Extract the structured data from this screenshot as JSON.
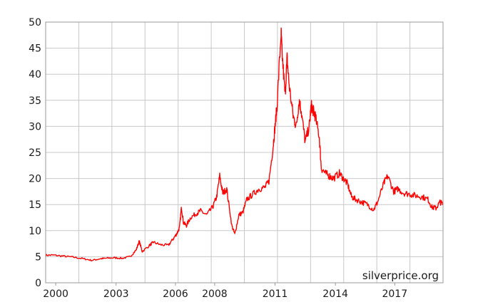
{
  "chart_data": {
    "type": "line",
    "title": "",
    "xlabel": "",
    "ylabel": "",
    "xlim": [
      1999.6,
      2019.35
    ],
    "ylim": [
      0,
      50
    ],
    "grid": true,
    "legend": "none",
    "watermark": "silverprice.org",
    "y_ticks": [
      "0",
      "5",
      "10",
      "15",
      "20",
      "25",
      "30",
      "35",
      "40",
      "45",
      "50"
    ],
    "x_ticks": [
      {
        "label": "2000",
        "value": 2000.1
      },
      {
        "label": "2003",
        "value": 2003.1
      },
      {
        "label": "2006",
        "value": 2006.05
      },
      {
        "label": "2008",
        "value": 2008.0
      },
      {
        "label": "2011",
        "value": 2011.0
      },
      {
        "label": "2014",
        "value": 2014.0
      },
      {
        "label": "2017",
        "value": 2016.95
      }
    ],
    "series": [
      {
        "color": "#ff0000",
        "x": [
          1999.6,
          2000.0,
          2000.5,
          2001.0,
          2001.5,
          2001.9,
          2002.3,
          2002.6,
          2003.0,
          2003.4,
          2003.8,
          2004.1,
          2004.25,
          2004.4,
          2004.8,
          2004.95,
          2005.3,
          2005.7,
          2005.95,
          2006.1,
          2006.25,
          2006.35,
          2006.45,
          2006.6,
          2006.8,
          2007.1,
          2007.3,
          2007.6,
          2007.9,
          2008.1,
          2008.25,
          2008.4,
          2008.6,
          2008.85,
          2009.0,
          2009.2,
          2009.4,
          2009.6,
          2009.9,
          2010.2,
          2010.5,
          2010.7,
          2010.9,
          2011.0,
          2011.1,
          2011.3,
          2011.35,
          2011.5,
          2011.6,
          2011.7,
          2011.9,
          2012.05,
          2012.2,
          2012.3,
          2012.5,
          2012.7,
          2012.8,
          2012.9,
          2013.0,
          2013.2,
          2013.3,
          2013.5,
          2013.7,
          2013.9,
          2014.2,
          2014.4,
          2014.6,
          2014.8,
          2015.0,
          2015.3,
          2015.6,
          2015.9,
          2016.1,
          2016.4,
          2016.6,
          2016.9,
          2017.1,
          2017.4,
          2017.7,
          2018.0,
          2018.3,
          2018.6,
          2018.8,
          2019.0,
          2019.2,
          2019.35
        ],
        "values": [
          5.3,
          5.3,
          5.1,
          4.9,
          4.6,
          4.3,
          4.6,
          4.7,
          4.8,
          4.7,
          5.0,
          6.3,
          8.0,
          6.0,
          7.3,
          7.8,
          7.3,
          7.2,
          8.5,
          9.3,
          10.5,
          14.5,
          11.5,
          11.0,
          12.5,
          13.3,
          13.8,
          13.0,
          14.5,
          16.5,
          20.5,
          17.2,
          18.0,
          11.0,
          9.3,
          13.0,
          13.5,
          16.0,
          17.0,
          18.0,
          18.3,
          19.5,
          26.0,
          30.0,
          34.0,
          48.0,
          44.0,
          36.0,
          43.0,
          38.0,
          32.0,
          30.0,
          35.0,
          33.0,
          27.0,
          30.0,
          34.0,
          33.0,
          32.0,
          28.0,
          22.0,
          21.0,
          20.5,
          20.0,
          21.0,
          20.0,
          19.0,
          16.5,
          16.0,
          15.5,
          15.0,
          14.0,
          15.5,
          19.0,
          20.5,
          17.5,
          18.0,
          17.2,
          17.0,
          16.7,
          16.5,
          16.0,
          14.5,
          14.3,
          15.5,
          15.0
        ]
      }
    ]
  }
}
